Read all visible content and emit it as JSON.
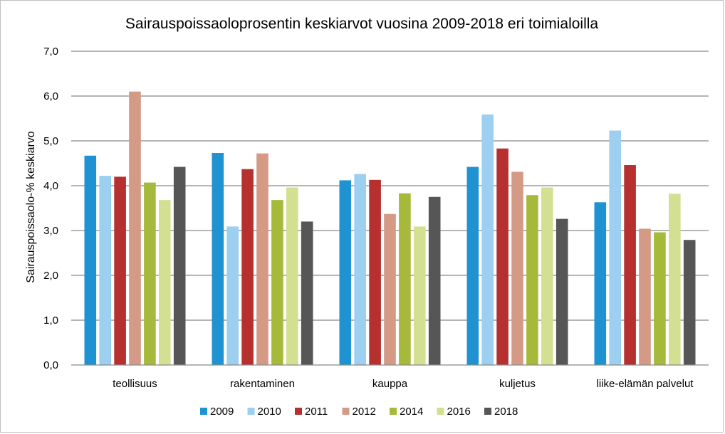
{
  "chart_data": {
    "type": "bar",
    "title": "Sairauspoissaoloprosentin keskiarvot vuosina 2009-2018 eri toimialoilla",
    "ylabel": "Sairauspoissaolo-% keskiarvo",
    "xlabel": "",
    "ylim": [
      0,
      7
    ],
    "yticks": [
      "0,0",
      "1,0",
      "2,0",
      "3,0",
      "4,0",
      "5,0",
      "6,0",
      "7,0"
    ],
    "grid": true,
    "legend_position": "bottom",
    "categories": [
      "teollisuus",
      "rakentaminen",
      "kauppa",
      "kuljetus",
      "liike-elämän palvelut"
    ],
    "series": [
      {
        "name": "2009",
        "color": "#1f93d1",
        "values": [
          4.67,
          4.73,
          4.12,
          4.42,
          3.63
        ]
      },
      {
        "name": "2010",
        "color": "#9dcff0",
        "values": [
          4.22,
          3.09,
          4.26,
          5.59,
          5.23
        ]
      },
      {
        "name": "2011",
        "color": "#b5302f",
        "values": [
          4.2,
          4.37,
          4.13,
          4.83,
          4.46
        ]
      },
      {
        "name": "2012",
        "color": "#d49a86",
        "values": [
          6.1,
          4.72,
          3.37,
          4.31,
          3.04
        ]
      },
      {
        "name": "2014",
        "color": "#a6b93a",
        "values": [
          4.07,
          3.68,
          3.83,
          3.79,
          2.96
        ]
      },
      {
        "name": "2016",
        "color": "#d3e092",
        "values": [
          3.68,
          3.96,
          3.09,
          3.96,
          3.82
        ]
      },
      {
        "name": "2018",
        "color": "#565656",
        "values": [
          4.42,
          3.2,
          3.75,
          3.26,
          2.79
        ]
      }
    ]
  }
}
